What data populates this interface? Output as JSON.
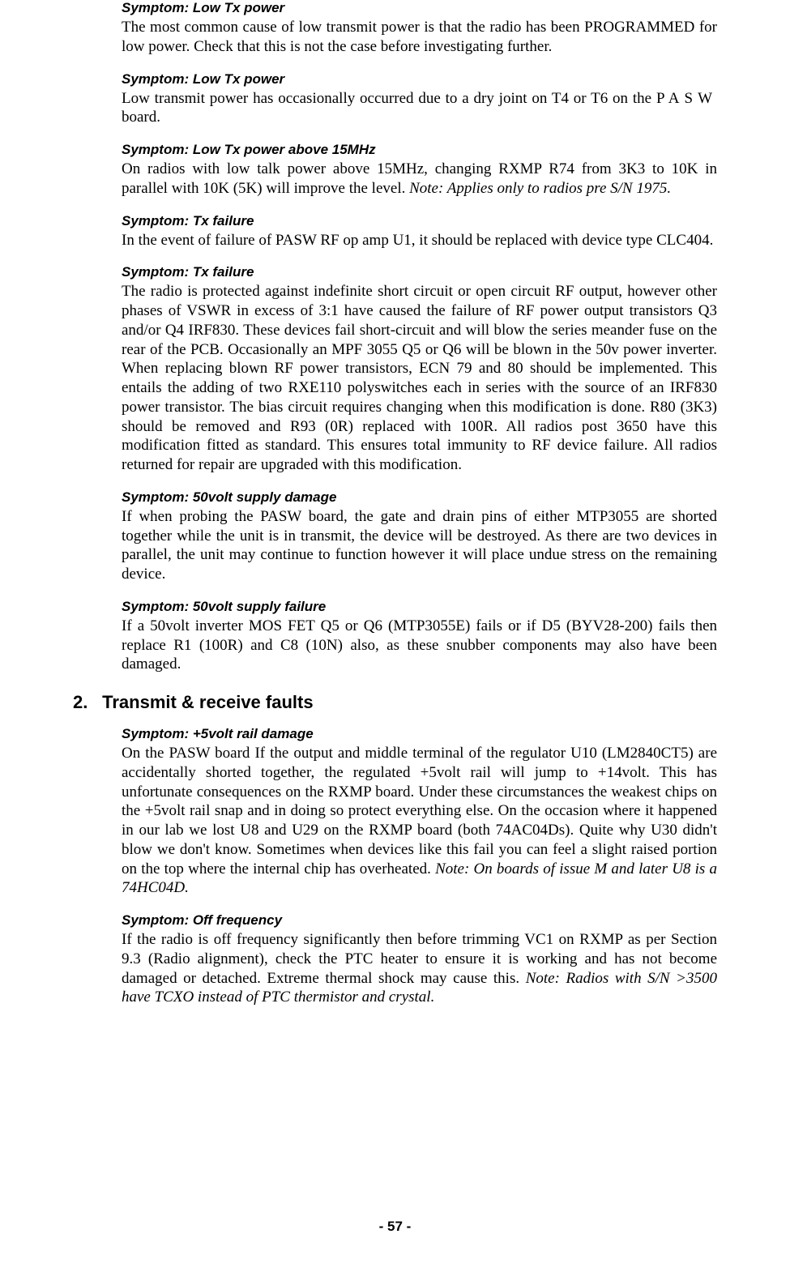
{
  "symptoms_group1": [
    {
      "label": "Symptom:  Low Tx power",
      "body": "The most common cause of low transmit power is that the radio has been PROGRAMMED for low power.  Check that this is not the case before investigating further."
    },
    {
      "label": "Symptom:  Low Tx power",
      "body_prefix": "Low transmit power has occasionally occurred due to a dry joint on T4 or T6 on the ",
      "body_spaced": "PASW",
      "body_suffix": " board."
    },
    {
      "label": "Symptom:  Low Tx power above 15MHz",
      "body": "On radios with low talk power above 15MHz, changing RXMP R74 from 3K3 to 10K in parallel with 10K (5K) will improve the level. ",
      "note": "Note:  Applies only to radios pre S/N 1975."
    },
    {
      "label": "Symptom:  Tx failure",
      "body": "In the event of failure of PASW RF op amp U1, it should be replaced with device type CLC404."
    },
    {
      "label": "Symptom:  Tx failure",
      "body": "The radio is protected against indefinite short circuit or open circuit RF output, however other phases of VSWR in excess of 3:1 have caused the failure of RF power output transistors Q3 and/or Q4 IRF830.  These devices fail short-circuit and will blow the series meander fuse on the rear of the PCB.  Occasionally an MPF 3055 Q5 or Q6 will be blown in the 50v power inverter.   When replacing blown RF power transistors, ECN 79 and 80 should be implemented.  This entails the adding of two RXE110 polyswitches each in series with the source of an IRF830 power transistor.   The bias circuit requires changing when this modification is done.  R80 (3K3) should be removed and R93 (0R) replaced with 100R.  All radios post 3650 have this modification fitted as standard.  This ensures total immunity to RF device failure.  All radios returned for repair are upgraded with this modification."
    },
    {
      "label": "Symptom:  50volt supply damage",
      "body": "If when probing the PASW board, the gate and drain pins of either MTP3055 are shorted together while the unit is in transmit, the device will be destroyed.  As there are two devices in parallel, the unit may continue to function however it will place undue stress on the remaining device."
    },
    {
      "label": "Symptom:  50volt supply failure",
      "body": "If a 50volt inverter MOS FET Q5 or Q6 (MTP3055E) fails or if D5 (BYV28-200) fails then replace R1 (100R) and C8 (10N) also, as these snubber components may also have been damaged."
    }
  ],
  "section2": {
    "number": "2.",
    "title": "Transmit & receive faults"
  },
  "symptoms_group2": [
    {
      "label": "Symptom:  +5volt rail damage",
      "body": "On the PASW board If the output and middle terminal of the regulator U10 (LM2840CT5) are accidentally shorted together, the regulated +5volt rail will jump to +14volt.   This has unfortunate consequences on the RXMP board.  Under these circumstances the weakest chips on the +5volt rail snap and in doing so protect everything else.  On the occasion where it happened in our lab we lost U8 and U29 on the RXMP board (both 74AC04Ds).  Quite why U30 didn't blow we don't know.  Sometimes when devices like this fail you can feel a slight raised portion on the top where the internal chip has overheated.  ",
      "note": "Note:  On boards of issue M and later U8 is a 74HC04D."
    },
    {
      "label": "Symptom:  Off frequency",
      "body": "If the radio is off frequency significantly then before trimming VC1 on RXMP as per Section 9.3 (Radio alignment), check the PTC heater to ensure it is working and has not become damaged or detached.  Extreme thermal shock may cause this.  ",
      "note": "Note:  Radios with S/N >3500 have TCXO instead of PTC thermistor and crystal."
    }
  ],
  "page_number": "- 57 -"
}
